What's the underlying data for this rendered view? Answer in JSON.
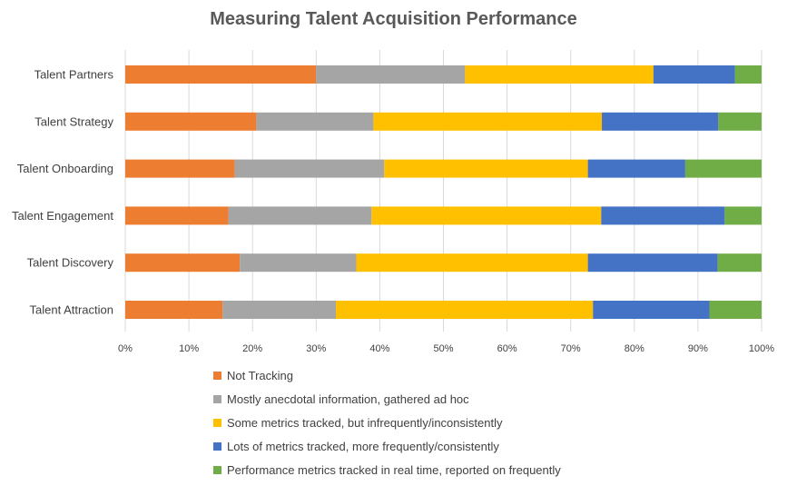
{
  "chart_data": {
    "type": "bar",
    "orientation": "horizontal",
    "stacked": "percent",
    "title": "Measuring Talent Acquisition Performance",
    "categories": [
      "Talent Partners",
      "Talent Strategy",
      "Talent Onboarding",
      "Talent Engagement",
      "Talent Discovery",
      "Talent Attraction"
    ],
    "xlim": [
      0,
      100
    ],
    "x_ticks": [
      "0%",
      "10%",
      "20%",
      "30%",
      "40%",
      "50%",
      "60%",
      "70%",
      "80%",
      "90%",
      "100%"
    ],
    "grid": "vertical",
    "legend_position": "bottom",
    "series": [
      {
        "name": "Not Tracking",
        "color": "#ED7D31",
        "values": [
          30,
          20.6,
          17.2,
          16.2,
          18,
          15.3
        ]
      },
      {
        "name": "Mostly anecdotal information, gathered ad hoc",
        "color": "#A5A5A5",
        "values": [
          23.4,
          18.4,
          23.5,
          22.5,
          18.3,
          17.8
        ]
      },
      {
        "name": "Some metrics tracked, but infrequently/inconsistently",
        "color": "#FFC000",
        "values": [
          29.6,
          35.9,
          32,
          36.1,
          36.4,
          40.4
        ]
      },
      {
        "name": "Lots of metrics tracked, more frequently/consistently",
        "color": "#4472C4",
        "values": [
          12.8,
          18.3,
          15.3,
          19.4,
          20.4,
          18.3
        ]
      },
      {
        "name": "Performance metrics tracked in real time, reported on frequently",
        "color": "#70AD47",
        "values": [
          4.2,
          6.8,
          12,
          5.8,
          6.9,
          8.2
        ]
      }
    ]
  }
}
